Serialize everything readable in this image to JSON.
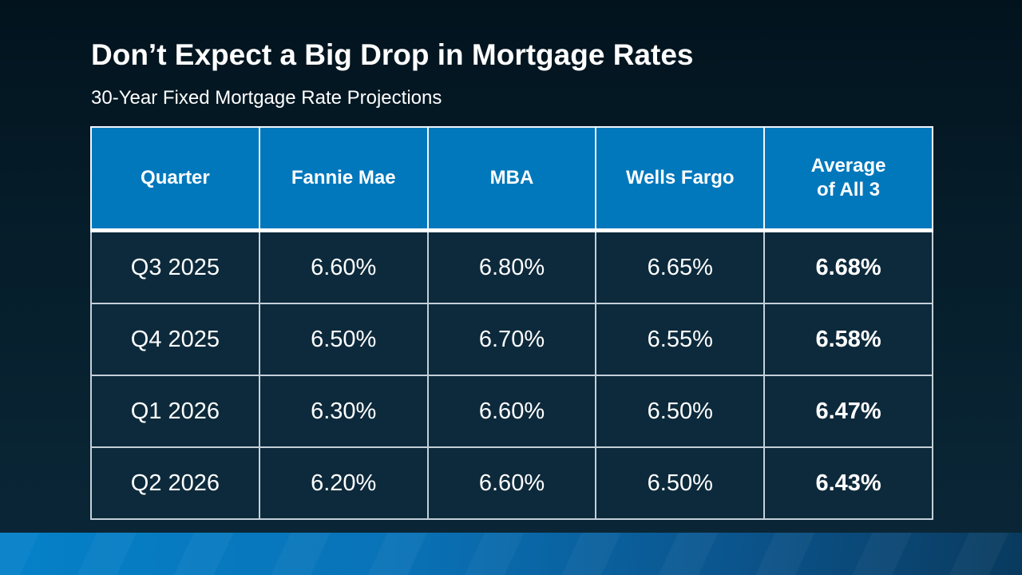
{
  "slide": {
    "title": "Don’t Expect a Big Drop in Mortgage Rates",
    "subtitle": "30-Year Fixed Mortgage Rate Projections"
  },
  "chart_data": {
    "type": "table",
    "title": "Don’t Expect a Big Drop in Mortgage Rates",
    "subtitle": "30-Year Fixed Mortgage Rate Projections",
    "columns": [
      "Quarter",
      "Fannie Mae",
      "MBA",
      "Wells Fargo",
      "Average of All 3"
    ],
    "rows": [
      [
        "Q3 2025",
        "6.60%",
        "6.80%",
        "6.65%",
        "6.68%"
      ],
      [
        "Q4 2025",
        "6.50%",
        "6.70%",
        "6.55%",
        "6.58%"
      ],
      [
        "Q1 2026",
        "6.30%",
        "6.60%",
        "6.50%",
        "6.47%"
      ],
      [
        "Q2 2026",
        "6.20%",
        "6.60%",
        "6.50%",
        "6.43%"
      ]
    ],
    "notes": "Average of All 3 column rendered in bold; units are percent; 30-year fixed mortgage rate projections by quarter"
  },
  "table": {
    "header_display": [
      "Quarter",
      "Fannie Mae",
      "MBA",
      "Wells Fargo",
      "Average\nof All 3"
    ]
  },
  "colors": {
    "background_top": "#02131d",
    "background_bottom": "#0a2636",
    "header_bg": "#0278BC",
    "cell_bg": "#0D2A3C",
    "text": "#ffffff",
    "grid_line": "#c3d0d9",
    "footer_band_left": "#0581C9",
    "footer_band_right": "#093A5E"
  }
}
